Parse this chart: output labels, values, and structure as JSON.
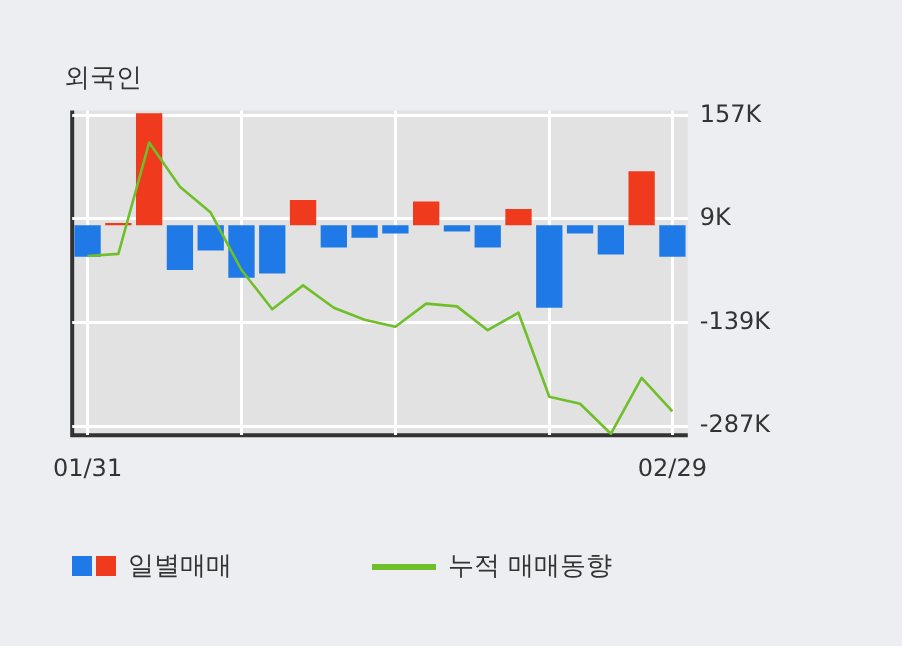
{
  "chart_data": {
    "type": "bar",
    "title": "외국인",
    "categories": [
      "01/31",
      null,
      null,
      null,
      null,
      null,
      null,
      null,
      null,
      null,
      null,
      null,
      null,
      null,
      null,
      null,
      null,
      null,
      null,
      "02/29"
    ],
    "series": [
      {
        "name": "일별매매",
        "colors": [
          "#1f7ae8",
          "#f03a1e",
          "#f03a1e",
          "#1f7ae8",
          "#1f7ae8",
          "#1f7ae8",
          "#1f7ae8",
          "#f03a1e",
          "#1f7ae8",
          "#1f7ae8",
          "#1f7ae8",
          "#f03a1e",
          "#1f7ae8",
          "#1f7ae8",
          "#f03a1e",
          "#1f7ae8",
          "#1f7ae8",
          "#1f7ae8",
          "#f03a1e",
          "#1f7ae8"
        ],
        "values": [
          -45000,
          3000,
          160000,
          -64000,
          -36000,
          -75000,
          -69000,
          36000,
          -32000,
          -18000,
          -12000,
          34000,
          -9000,
          -32000,
          23000,
          -118000,
          -12000,
          -42000,
          77000,
          -45000
        ]
      },
      {
        "name": "누적 매매동향",
        "type": "line",
        "color": "#6fbf2a",
        "values": [
          -44000,
          -41000,
          118000,
          55000,
          18000,
          -64000,
          -120000,
          -86000,
          -118000,
          -135000,
          -145000,
          -112000,
          -116000,
          -150000,
          -125000,
          -245000,
          -255000,
          -298000,
          -218000,
          -266000
        ]
      }
    ],
    "ylim": [
      -300000,
      164000
    ],
    "yticks": [
      {
        "value": 157000,
        "label": "157K"
      },
      {
        "value": 9000,
        "label": "9K"
      },
      {
        "value": -139000,
        "label": "-139K"
      },
      {
        "value": -287000,
        "label": "-287K"
      }
    ],
    "grid": true,
    "legend": "bottom",
    "marker": "none",
    "line_style": "solid"
  }
}
